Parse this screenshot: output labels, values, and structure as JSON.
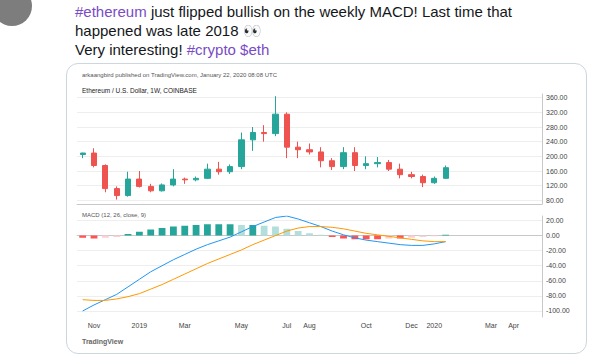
{
  "tweet": {
    "lines": [
      "#ethereum just flipped bullish on the weekly MACD! Last time that",
      "happened was late 2018 👀",
      "Very interesting! #crypto $eth"
    ]
  },
  "footer": "TradingView",
  "chart_data": [
    {
      "type": "candlestick",
      "subtitle": "arkaangbird published on TradingView.com, January 22, 2020 08:08 UTC",
      "title": "Ethereum / U.S. Dollar, 1W, COINBASE",
      "categories": [
        null,
        "Nov",
        null,
        null,
        null,
        "2019",
        null,
        null,
        null,
        "Mar",
        null,
        null,
        null,
        null,
        "May",
        null,
        null,
        null,
        "Jul",
        null,
        "Aug",
        null,
        null,
        null,
        null,
        "Oct",
        null,
        null,
        null,
        "Dec",
        null,
        "2020",
        null,
        null,
        null,
        null,
        "Mar",
        null,
        "Apr",
        null,
        null
      ],
      "open": [
        205,
        209,
        175,
        112,
        93,
        138,
        118,
        106,
        122,
        138,
        136,
        140,
        165,
        158,
        172,
        245,
        265,
        262,
        315,
        225,
        218,
        212,
        188,
        172,
        210,
        175,
        180,
        183,
        165,
        150,
        145,
        128,
        140,
        null,
        null,
        null,
        null,
        null,
        null,
        null,
        null
      ],
      "high": [
        210,
        222,
        178,
        118,
        158,
        160,
        125,
        126,
        165,
        142,
        145,
        180,
        185,
        178,
        265,
        280,
        285,
        364,
        320,
        240,
        235,
        225,
        195,
        225,
        225,
        200,
        198,
        190,
        180,
        158,
        150,
        145,
        175,
        null,
        null,
        null,
        null,
        null,
        null,
        null,
        null
      ],
      "low": [
        195,
        170,
        102,
        82,
        90,
        115,
        102,
        104,
        118,
        125,
        132,
        138,
        150,
        152,
        165,
        215,
        240,
        255,
        195,
        195,
        205,
        170,
        163,
        165,
        160,
        165,
        170,
        160,
        140,
        140,
        116,
        125,
        138,
        null,
        null,
        null,
        null,
        null,
        null,
        null,
        null
      ],
      "close": [
        209,
        175,
        112,
        93,
        138,
        118,
        106,
        122,
        138,
        136,
        140,
        165,
        158,
        172,
        245,
        265,
        262,
        315,
        225,
        218,
        212,
        188,
        172,
        210,
        175,
        180,
        183,
        165,
        150,
        145,
        128,
        140,
        169,
        null,
        null,
        null,
        null,
        null,
        null,
        null,
        null
      ],
      "ylim": [
        70,
        370
      ],
      "yticks": [
        {
          "value": 80,
          "label": "80.00"
        },
        {
          "value": 120,
          "label": "120.00"
        },
        {
          "value": 160,
          "label": "160.00"
        },
        {
          "value": 200,
          "label": "200.00"
        },
        {
          "value": 240,
          "label": "240.00"
        },
        {
          "value": 280,
          "label": "280.00"
        },
        {
          "value": 320,
          "label": "320.00"
        },
        {
          "value": 360,
          "label": "360.00"
        }
      ],
      "grid": true,
      "tick_labels": "y"
    },
    {
      "type": "macd",
      "title": "MACD (12, 26, close, 9)",
      "categories": [
        null,
        "Nov",
        null,
        null,
        null,
        "2019",
        null,
        null,
        null,
        "Mar",
        null,
        null,
        null,
        null,
        "May",
        null,
        null,
        null,
        "Jul",
        null,
        "Aug",
        null,
        null,
        null,
        null,
        "Oct",
        null,
        null,
        null,
        "Dec",
        null,
        "2020",
        null,
        null,
        null,
        null,
        "Mar",
        null,
        "Apr",
        null,
        null
      ],
      "series": [
        {
          "type": "bar",
          "values": [
            -3,
            -4,
            -3,
            -2,
            2,
            5,
            8,
            10,
            12,
            13,
            14,
            15,
            15,
            15,
            14,
            14,
            13,
            12,
            9,
            6,
            3,
            1,
            -2,
            -4,
            -5,
            -5,
            -5,
            -4,
            -4,
            -3,
            -2,
            -1,
            1,
            null,
            null,
            null,
            null,
            null,
            null,
            null,
            null
          ]
        },
        {
          "type": "line",
          "color": "#2196f3",
          "values": [
            -100,
            -92,
            -85,
            -78,
            -68,
            -58,
            -48,
            -40,
            -32,
            -25,
            -18,
            -12,
            -7,
            -2,
            5,
            12,
            18,
            24,
            26,
            22,
            17,
            12,
            6,
            1,
            -3,
            -6,
            -8,
            -10,
            -12,
            -13,
            -13,
            -11,
            -8,
            null,
            null,
            null,
            null,
            null,
            null,
            null,
            null
          ]
        },
        {
          "type": "line",
          "color": "#ff9800",
          "values": [
            -85,
            -86,
            -86,
            -84,
            -81,
            -77,
            -71,
            -65,
            -58,
            -51,
            -44,
            -37,
            -31,
            -25,
            -19,
            -12,
            -6,
            0,
            6,
            10,
            12,
            12,
            11,
            9,
            6,
            3,
            1,
            -1,
            -3,
            -5,
            -7,
            -8,
            -8,
            null,
            null,
            null,
            null,
            null,
            null,
            null,
            null
          ]
        }
      ],
      "ylim": [
        -108,
        26
      ],
      "yticks": [
        {
          "value": -100,
          "label": "-100.00"
        },
        {
          "value": -80,
          "label": "-80.00"
        },
        {
          "value": -60,
          "label": "-60.00"
        },
        {
          "value": -40,
          "label": "-40.00"
        },
        {
          "value": -20,
          "label": "-20.00"
        },
        {
          "value": 0,
          "label": "0.00"
        },
        {
          "value": 20,
          "label": "20.00"
        }
      ],
      "grid": true
    }
  ]
}
